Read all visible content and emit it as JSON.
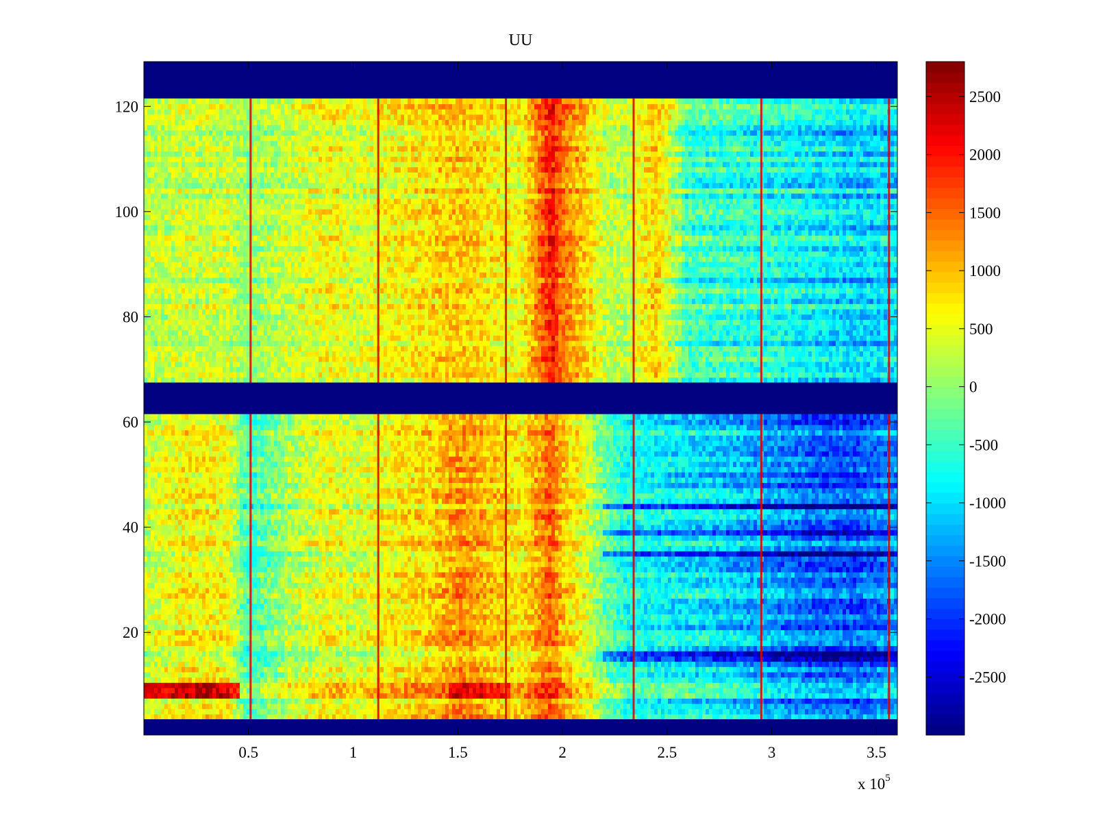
{
  "chart_data": {
    "type": "heatmap",
    "title": "UU",
    "xlabel": "",
    "ylabel": "",
    "x_multiplier_label": "x 10",
    "x_multiplier_exponent": "5",
    "xlim": [
      0,
      3.6
    ],
    "ylim": [
      0.5,
      128.5
    ],
    "x_ticks": [
      0.5,
      1,
      1.5,
      2,
      2.5,
      3,
      3.5
    ],
    "x_tick_labels": [
      "0.5",
      "1",
      "1.5",
      "2",
      "2.5",
      "3",
      "3.5"
    ],
    "y_ticks": [
      20,
      40,
      60,
      80,
      100,
      120
    ],
    "y_tick_labels": [
      "20",
      "40",
      "60",
      "80",
      "100",
      "120"
    ],
    "colormap": "jet",
    "clim": [
      -3000,
      2800
    ],
    "colorbar_ticks": [
      2500,
      2000,
      1500,
      1000,
      500,
      0,
      -500,
      -1000,
      -1500,
      -2000,
      -2500
    ],
    "colorbar_tick_labels": [
      "2500",
      "2000",
      "1500",
      "1000",
      "500",
      "0",
      "-500",
      "-1000",
      "-1500",
      "-2000",
      "-2500"
    ],
    "empty_row_bands": [
      {
        "from": 121.5,
        "to": 128.5,
        "value": -3000
      },
      {
        "from": 61.5,
        "to": 67.5,
        "value": -3000
      },
      {
        "from": 0.5,
        "to": 3.5,
        "value": -3000
      }
    ],
    "vertical_spikes_x": [
      0.51,
      1.12,
      1.73,
      2.34,
      2.95,
      3.56
    ],
    "column_profile": {
      "x": [
        0.0,
        0.2,
        0.4,
        0.5,
        0.7,
        0.9,
        1.0,
        1.2,
        1.4,
        1.5,
        1.6,
        1.8,
        1.9,
        1.95,
        2.0,
        2.1,
        2.2,
        2.3,
        2.45,
        2.6,
        2.8,
        3.0,
        3.2,
        3.4,
        3.6
      ],
      "values_upper": [
        200,
        300,
        300,
        0,
        300,
        600,
        400,
        600,
        800,
        900,
        800,
        500,
        1500,
        2000,
        1400,
        900,
        300,
        200,
        900,
        -500,
        -600,
        -700,
        -900,
        -1100,
        -1000
      ],
      "values_lower": [
        300,
        700,
        600,
        -500,
        200,
        600,
        400,
        700,
        900,
        1300,
        1100,
        700,
        1300,
        1500,
        1000,
        500,
        -200,
        -700,
        -800,
        -900,
        -1100,
        -1400,
        -1700,
        -1800,
        -1400
      ]
    },
    "hot_rows_lower": [
      8.5,
      9,
      9.5,
      10
    ],
    "cold_rows_lower": [
      15,
      16,
      35,
      39,
      44
    ]
  }
}
